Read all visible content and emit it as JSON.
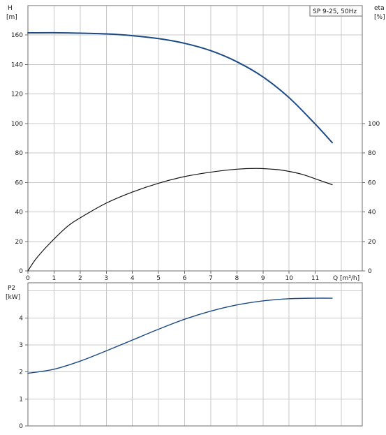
{
  "legend_text": "SP 9-25, 50Hz",
  "colors": {
    "head_curve": "#1b4a87",
    "eta_curve": "#111111",
    "power_curve": "#1b4a87",
    "grid": "#c8c8c8",
    "frame": "#6e6e6e"
  },
  "chart_data": [
    {
      "type": "line",
      "xlabel": "Q [m³/h]",
      "xlim": [
        0,
        12.8
      ],
      "x_ticks": [
        0,
        1,
        2,
        3,
        4,
        5,
        6,
        7,
        8,
        9,
        10,
        11
      ],
      "left_axis": {
        "label": "H",
        "unit": "[m]",
        "ylim": [
          0,
          180
        ],
        "ticks": [
          0,
          20,
          40,
          60,
          80,
          100,
          120,
          140,
          160
        ]
      },
      "right_axis": {
        "label": "eta",
        "unit": "[%]",
        "ylim": [
          0,
          180
        ],
        "ticks": [
          0,
          20,
          40,
          60,
          80,
          100
        ]
      },
      "grid": true,
      "legend_position": "top-right",
      "series": [
        {
          "name": "H",
          "axis": "left",
          "x": [
            0,
            1,
            2,
            3,
            4,
            5,
            6,
            7,
            8,
            9,
            10,
            11,
            11.65
          ],
          "y": [
            161.5,
            161.6,
            161.3,
            160.8,
            159.6,
            157.6,
            154.4,
            149.4,
            141.9,
            131.6,
            117.5,
            99.6,
            87
          ]
        },
        {
          "name": "eta",
          "axis": "right",
          "x": [
            0,
            0.3,
            0.8,
            1.5,
            2,
            3,
            4,
            5,
            6,
            7,
            8,
            8.75,
            9.5,
            10,
            10.5,
            11,
            11.65
          ],
          "y": [
            0,
            8,
            18,
            30,
            36,
            46,
            53.5,
            59.5,
            64,
            67,
            69,
            69.5,
            68.8,
            67.5,
            65.5,
            62.5,
            58.5
          ]
        }
      ]
    },
    {
      "type": "line",
      "xlabel": "",
      "xlim": [
        0,
        12.8
      ],
      "left_axis": {
        "label": "P2",
        "unit": "[kW]",
        "ylim": [
          0,
          5.3
        ],
        "ticks": [
          0,
          1,
          2,
          3,
          4
        ]
      },
      "grid": true,
      "series": [
        {
          "name": "P2",
          "axis": "left",
          "x": [
            0,
            1,
            2,
            3,
            4,
            5,
            6,
            7,
            8,
            9,
            10,
            11,
            11.65
          ],
          "y": [
            1.95,
            2.1,
            2.4,
            2.78,
            3.18,
            3.58,
            3.95,
            4.25,
            4.48,
            4.63,
            4.71,
            4.73,
            4.73
          ]
        }
      ]
    }
  ]
}
